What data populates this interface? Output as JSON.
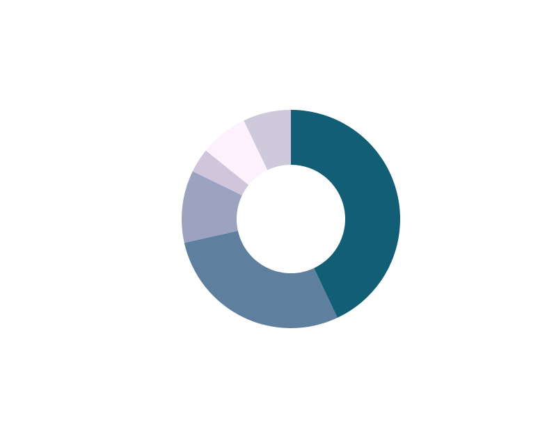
{
  "chart_data": {
    "type": "donut",
    "values": [
      43,
      28.5,
      10.7,
      3.6,
      7.1,
      7.1
    ],
    "colors": [
      "#115e75",
      "#5f7f9e",
      "#9ca3c1",
      "#cfc6dc",
      "#fdf1fd",
      "#cecadb"
    ]
  }
}
